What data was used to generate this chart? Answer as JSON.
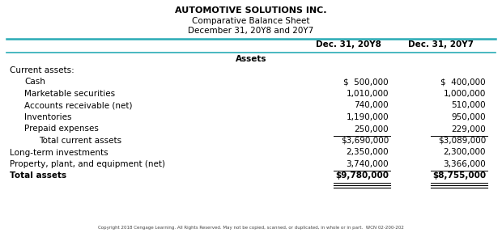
{
  "title1": "AUTOMOTIVE SOLUTIONS INC.",
  "title2": "Comparative Balance Sheet",
  "title3": "December 31, 20Y8 and 20Y7",
  "col1_header": "Dec. 31, 20Y8",
  "col2_header": "Dec. 31, 20Y7",
  "section_assets": "Assets",
  "rows": [
    {
      "label": "Current assets:",
      "val1": "",
      "val2": "",
      "indent": 0,
      "bold": false,
      "underline_after_val": false,
      "double_underline": false
    },
    {
      "label": "Cash",
      "val1": "$  500,000",
      "val2": "$  400,000",
      "indent": 1,
      "bold": false,
      "underline_after_val": false,
      "double_underline": false
    },
    {
      "label": "Marketable securities",
      "val1": "1,010,000",
      "val2": "1,000,000",
      "indent": 1,
      "bold": false,
      "underline_after_val": false,
      "double_underline": false
    },
    {
      "label": "Accounts receivable (net)",
      "val1": "740,000",
      "val2": "510,000",
      "indent": 1,
      "bold": false,
      "underline_after_val": false,
      "double_underline": false
    },
    {
      "label": "Inventories",
      "val1": "1,190,000",
      "val2": "950,000",
      "indent": 1,
      "bold": false,
      "underline_after_val": false,
      "double_underline": false
    },
    {
      "label": "Prepaid expenses",
      "val1": "250,000",
      "val2": "229,000",
      "indent": 1,
      "bold": false,
      "underline_after_val": true,
      "double_underline": false
    },
    {
      "label": "Total current assets",
      "val1": "$3,690,000",
      "val2": "$3,089,000",
      "indent": 2,
      "bold": false,
      "underline_after_val": false,
      "double_underline": false
    },
    {
      "label": "Long-term investments",
      "val1": "2,350,000",
      "val2": "2,300,000",
      "indent": 0,
      "bold": false,
      "underline_after_val": false,
      "double_underline": false
    },
    {
      "label": "Property, plant, and equipment (net)",
      "val1": "3,740,000",
      "val2": "3,366,000",
      "indent": 0,
      "bold": false,
      "underline_after_val": true,
      "double_underline": false
    },
    {
      "label": "Total assets",
      "val1": "$9,780,000",
      "val2": "$8,755,000",
      "indent": 0,
      "bold": true,
      "underline_after_val": true,
      "double_underline": true
    }
  ],
  "footer": "Copyright 2018 Cengage Learning. All Rights Reserved. May not be copied, scanned, or duplicated, in whole or in part.  WCN 02-200-202",
  "cyan_color": "#29ABB5",
  "text_color": "#000000",
  "bg_color": "#FFFFFF"
}
